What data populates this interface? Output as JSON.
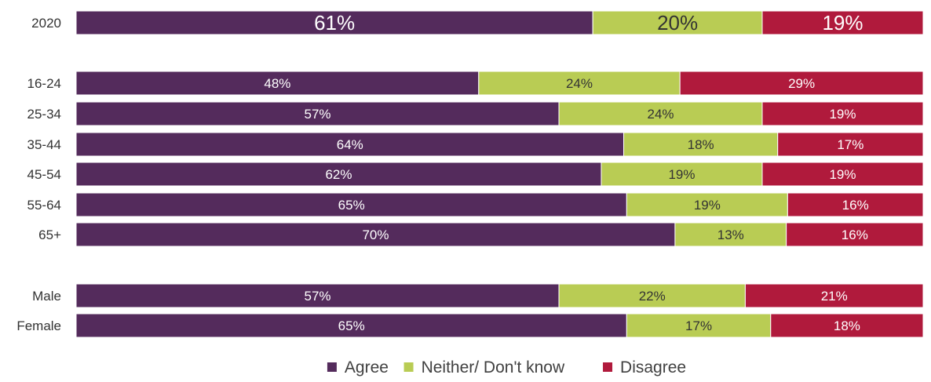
{
  "chart_data": {
    "type": "bar",
    "orientation": "horizontal",
    "stacked": true,
    "percent_stacked": true,
    "title": "",
    "xlabel": "",
    "ylabel": "",
    "xlim": [
      0,
      100
    ],
    "grid": false,
    "legend_position": "bottom",
    "categories": [
      "2020",
      "16-24",
      "25-34",
      "35-44",
      "45-54",
      "55-64",
      "65+",
      "Male",
      "Female"
    ],
    "groups": [
      [
        "2020"
      ],
      [
        "16-24",
        "25-34",
        "35-44",
        "45-54",
        "55-64",
        "65+"
      ],
      [
        "Male",
        "Female"
      ]
    ],
    "series": [
      {
        "name": "Agree",
        "color": "#542b5c",
        "values": [
          61,
          48,
          57,
          64,
          62,
          65,
          70,
          57,
          65
        ]
      },
      {
        "name": "Neither/ Don't know",
        "color": "#b9cc54",
        "values": [
          20,
          24,
          24,
          18,
          19,
          19,
          13,
          22,
          17
        ]
      },
      {
        "name": "Disagree",
        "color": "#b01a3c",
        "values": [
          19,
          29,
          19,
          17,
          19,
          16,
          16,
          21,
          18
        ]
      }
    ],
    "data_labels": [
      [
        "61%",
        "48%",
        "57%",
        "64%",
        "62%",
        "65%",
        "70%",
        "57%",
        "65%"
      ],
      [
        "20%",
        "24%",
        "24%",
        "18%",
        "19%",
        "19%",
        "13%",
        "22%",
        "17%"
      ],
      [
        "19%",
        "29%",
        "19%",
        "17%",
        "19%",
        "16%",
        "16%",
        "21%",
        "18%"
      ]
    ]
  }
}
